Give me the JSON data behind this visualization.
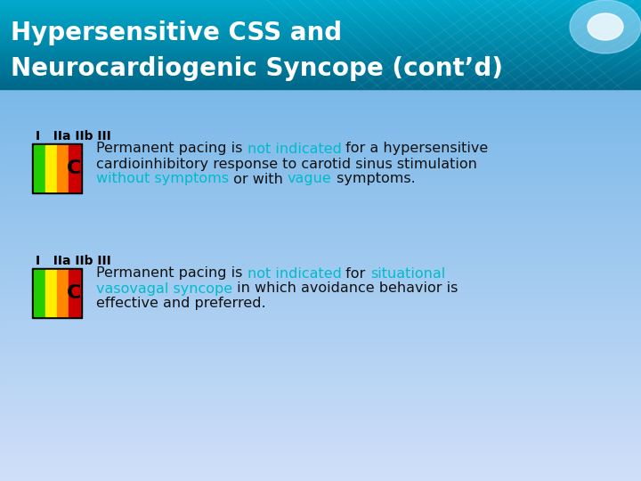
{
  "title_line1": "Hypersensitive CSS and",
  "title_line2": "Neurocardiogenic Syncope (cont’d)",
  "title_text_color": "#ffffff",
  "header_color": "#0088aa",
  "body_bg_top": "#7ab8e8",
  "body_bg_bottom": "#c8d8f5",
  "box_colors": [
    "#22cc00",
    "#ffee00",
    "#ff8800",
    "#cc0000"
  ],
  "box_letter": "C",
  "highlight_color": "#00bbcc",
  "black_color": "#111111",
  "block1_label": "I   IIa IIb III",
  "block2_label": "I   IIa IIb III",
  "block1_lines": [
    [
      {
        "text": "Permanent pacing is ",
        "color": "#111111"
      },
      {
        "text": "not indicated",
        "color": "#00bbcc"
      },
      {
        "text": " for a hypersensitive",
        "color": "#111111"
      }
    ],
    [
      {
        "text": "cardioinhibitory response to carotid sinus stimulation",
        "color": "#111111"
      }
    ],
    [
      {
        "text": "without symptoms",
        "color": "#00bbcc"
      },
      {
        "text": " or with ",
        "color": "#111111"
      },
      {
        "text": "vague",
        "color": "#00bbcc"
      },
      {
        "text": " symptoms.",
        "color": "#111111"
      }
    ]
  ],
  "block2_lines": [
    [
      {
        "text": "Permanent pacing is ",
        "color": "#111111"
      },
      {
        "text": "not indicated",
        "color": "#00bbcc"
      },
      {
        "text": " for ",
        "color": "#111111"
      },
      {
        "text": "situational",
        "color": "#00bbcc"
      }
    ],
    [
      {
        "text": "vasovagal syncope",
        "color": "#00bbcc"
      },
      {
        "text": " in which avoidance behavior is",
        "color": "#111111"
      }
    ],
    [
      {
        "text": "effective and preferred.",
        "color": "#111111"
      }
    ]
  ],
  "figsize": [
    7.2,
    5.4
  ],
  "dpi": 100
}
